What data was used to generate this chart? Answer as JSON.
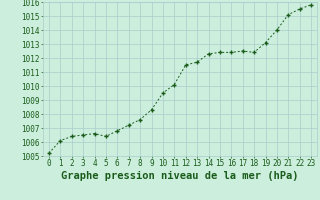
{
  "x": [
    0,
    1,
    2,
    3,
    4,
    5,
    6,
    7,
    8,
    9,
    10,
    11,
    12,
    13,
    14,
    15,
    16,
    17,
    18,
    19,
    20,
    21,
    22,
    23
  ],
  "y": [
    1005.2,
    1006.1,
    1006.4,
    1006.5,
    1006.6,
    1006.4,
    1006.8,
    1007.2,
    1007.6,
    1008.3,
    1009.5,
    1010.1,
    1011.5,
    1011.7,
    1012.3,
    1012.4,
    1012.4,
    1012.5,
    1012.4,
    1013.1,
    1014.0,
    1015.1,
    1015.5,
    1015.8
  ],
  "line_color": "#1a5c1a",
  "marker_color": "#1a5c1a",
  "bg_color": "#cceedd",
  "grid_color": "#aacccc",
  "xlabel": "Graphe pression niveau de la mer (hPa)",
  "xlabel_color": "#1a5c1a",
  "ylim": [
    1005,
    1016
  ],
  "yticks": [
    1005,
    1006,
    1007,
    1008,
    1009,
    1010,
    1011,
    1012,
    1013,
    1014,
    1015,
    1016
  ],
  "xticks": [
    0,
    1,
    2,
    3,
    4,
    5,
    6,
    7,
    8,
    9,
    10,
    11,
    12,
    13,
    14,
    15,
    16,
    17,
    18,
    19,
    20,
    21,
    22,
    23
  ],
  "tick_color": "#1a5c1a",
  "tick_fontsize": 5.5,
  "xlabel_fontsize": 7.5
}
